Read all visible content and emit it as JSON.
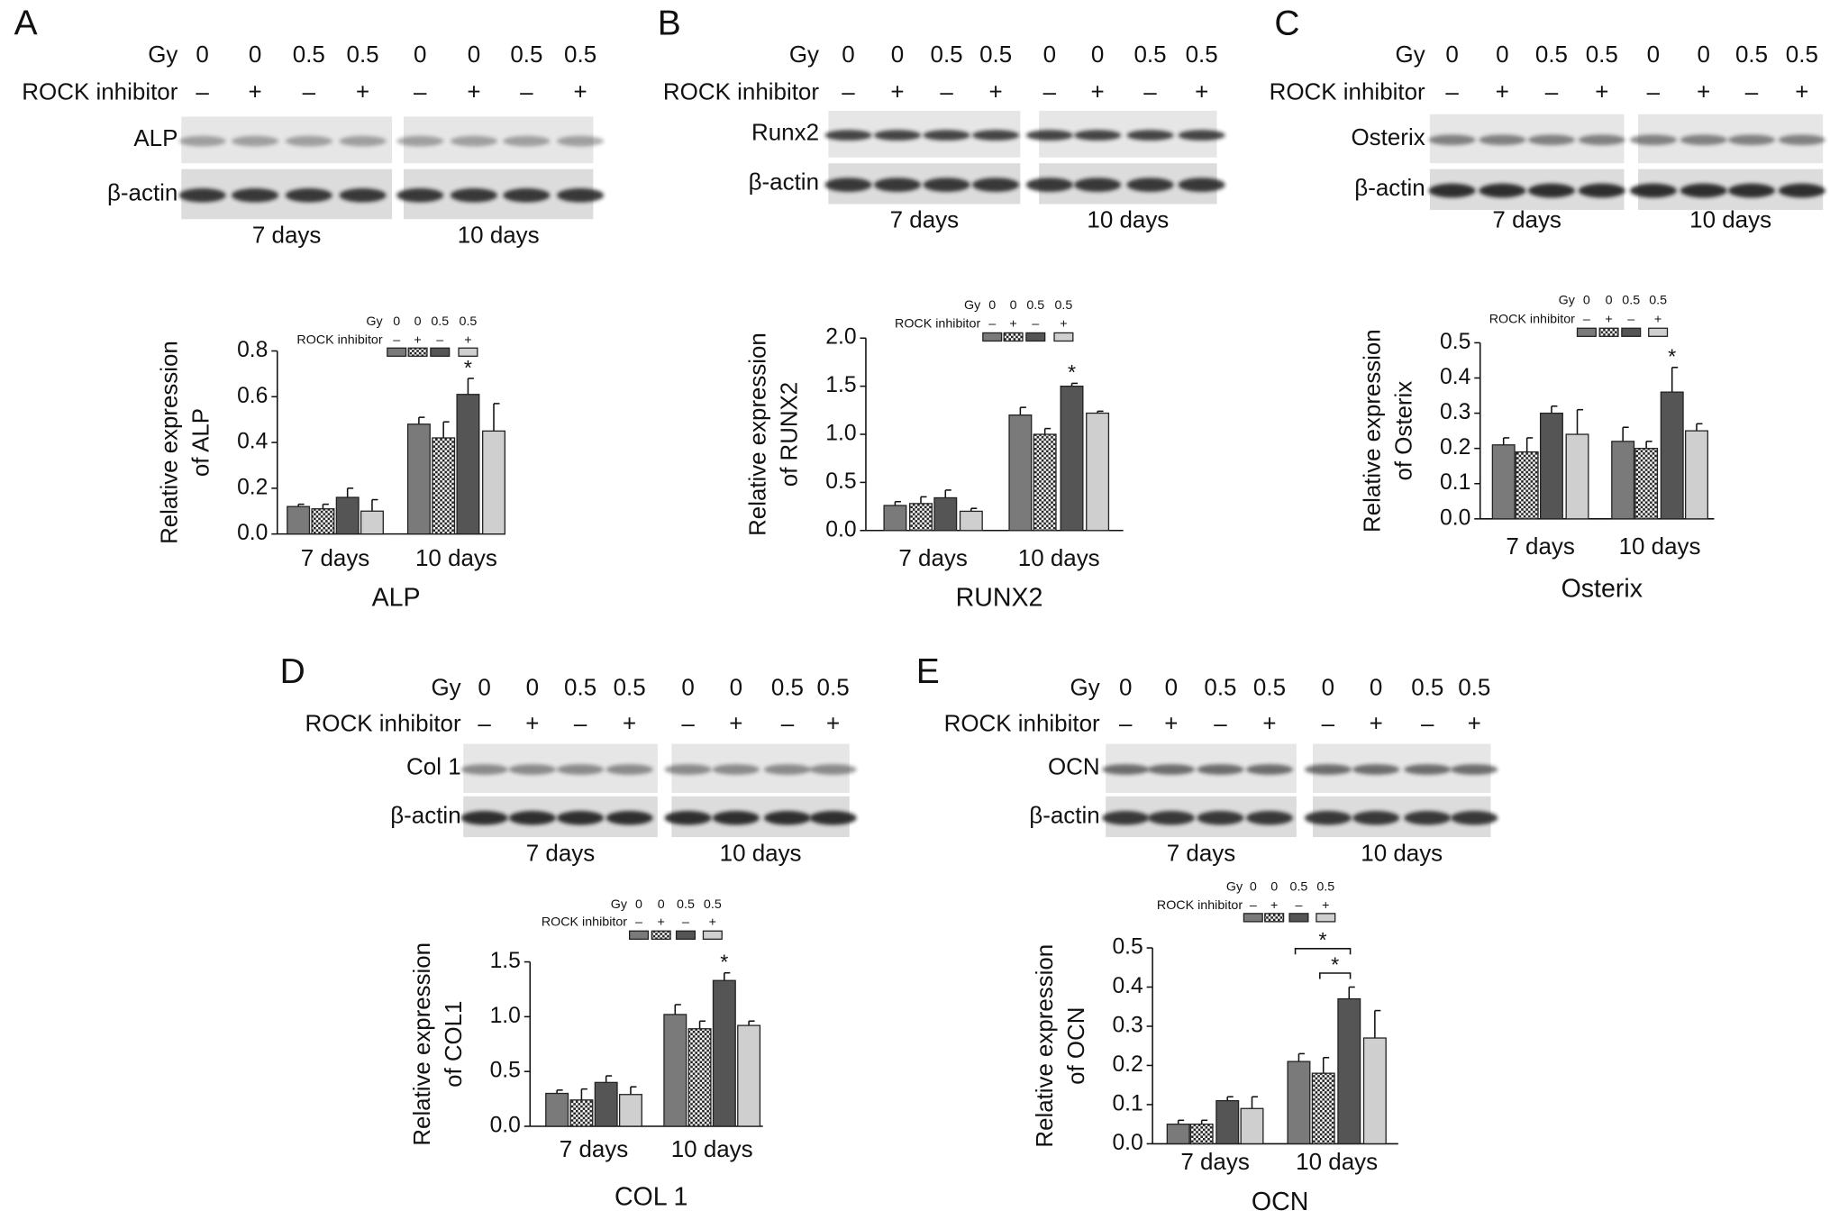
{
  "conditions": {
    "gy_label": "Gy",
    "gy": [
      0,
      0,
      0.5,
      0.5
    ],
    "rock_label": "ROCK inhibitor",
    "rock": [
      "–",
      "+",
      "–",
      "+"
    ]
  },
  "chart_data": [
    {
      "type": "bar",
      "panel": "A",
      "blot": {
        "bands": [
          "ALP",
          "β-actin"
        ],
        "groups": [
          "7 days",
          "10 days"
        ]
      },
      "title": "ALP",
      "ylabel": [
        "Relative expression",
        "of ALP"
      ],
      "categories": [
        "7 days",
        "10 days"
      ],
      "series": [
        {
          "color": "#7a7a7a",
          "values": [
            0.12,
            0.48
          ],
          "errors": [
            0.01,
            0.03
          ]
        },
        {
          "color": "#333333",
          "pattern": "checker",
          "values": [
            0.11,
            0.42
          ],
          "errors": [
            0.02,
            0.07
          ]
        },
        {
          "color": "#555555",
          "values": [
            0.16,
            0.61
          ],
          "errors": [
            0.04,
            0.07
          ]
        },
        {
          "color": "#cfcfcf",
          "values": [
            0.1,
            0.45
          ],
          "errors": [
            0.05,
            0.12
          ]
        }
      ],
      "ylim": [
        0,
        0.8
      ],
      "yticks": [
        {
          "value": 0,
          "label": "0.0"
        },
        0.2,
        0.4,
        0.6,
        0.8
      ],
      "annotations": [
        {
          "text": "*",
          "category": 1,
          "series": 2
        }
      ]
    },
    {
      "type": "bar",
      "panel": "B",
      "blot": {
        "bands": [
          "Runx2",
          "β-actin"
        ],
        "groups": [
          "7 days",
          "10 days"
        ]
      },
      "title": "RUNX2",
      "ylabel": [
        "Relative expression",
        "of RUNX2"
      ],
      "categories": [
        "7 days",
        "10 days"
      ],
      "series": [
        {
          "color": "#7a7a7a",
          "values": [
            0.26,
            1.2
          ],
          "errors": [
            0.04,
            0.08
          ]
        },
        {
          "color": "#333333",
          "pattern": "checker",
          "values": [
            0.28,
            1.0
          ],
          "errors": [
            0.07,
            0.06
          ]
        },
        {
          "color": "#555555",
          "values": [
            0.34,
            1.5
          ],
          "errors": [
            0.08,
            0.03
          ]
        },
        {
          "color": "#cfcfcf",
          "values": [
            0.2,
            1.22
          ],
          "errors": [
            0.03,
            0.02
          ]
        }
      ],
      "ylim": [
        0,
        2
      ],
      "yticks": [
        {
          "value": 0,
          "label": "0.0"
        },
        0.5,
        {
          "value": 1,
          "label": "1.0"
        },
        1.5,
        {
          "value": 2,
          "label": "2.0"
        }
      ],
      "annotations": [
        {
          "text": "*",
          "category": 1,
          "series": 2
        }
      ]
    },
    {
      "type": "bar",
      "panel": "C",
      "blot": {
        "bands": [
          "Osterix",
          "β-actin"
        ],
        "groups": [
          "7 days",
          "10 days"
        ]
      },
      "title": "Osterix",
      "ylabel": [
        "Relative expression",
        "of Osterix"
      ],
      "categories": [
        "7 days",
        "10 days"
      ],
      "series": [
        {
          "color": "#7a7a7a",
          "values": [
            0.21,
            0.22
          ],
          "errors": [
            0.02,
            0.04
          ]
        },
        {
          "color": "#333333",
          "pattern": "checker",
          "values": [
            0.19,
            0.2
          ],
          "errors": [
            0.04,
            0.02
          ]
        },
        {
          "color": "#555555",
          "values": [
            0.3,
            0.36
          ],
          "errors": [
            0.02,
            0.07
          ]
        },
        {
          "color": "#cfcfcf",
          "values": [
            0.24,
            0.25
          ],
          "errors": [
            0.07,
            0.02
          ]
        }
      ],
      "ylim": [
        0,
        0.5
      ],
      "yticks": [
        {
          "value": 0,
          "label": "0.0"
        },
        0.1,
        0.2,
        0.3,
        0.4,
        0.5
      ],
      "annotations": [
        {
          "text": "*",
          "category": 1,
          "series": 2
        }
      ]
    },
    {
      "type": "bar",
      "panel": "D",
      "blot": {
        "bands": [
          "Col 1",
          "β-actin"
        ],
        "groups": [
          "7 days",
          "10 days"
        ]
      },
      "title": "COL 1",
      "ylabel": [
        "Relative expression",
        "of COL1"
      ],
      "categories": [
        "7 days",
        "10 days"
      ],
      "series": [
        {
          "color": "#7a7a7a",
          "values": [
            0.3,
            1.02
          ],
          "errors": [
            0.03,
            0.09
          ]
        },
        {
          "color": "#333333",
          "pattern": "checker",
          "values": [
            0.24,
            0.89
          ],
          "errors": [
            0.1,
            0.07
          ]
        },
        {
          "color": "#555555",
          "values": [
            0.4,
            1.33
          ],
          "errors": [
            0.06,
            0.07
          ]
        },
        {
          "color": "#cfcfcf",
          "values": [
            0.29,
            0.92
          ],
          "errors": [
            0.07,
            0.04
          ]
        }
      ],
      "ylim": [
        0,
        1.5
      ],
      "yticks": [
        {
          "value": 0,
          "label": "0.0"
        },
        0.5,
        {
          "value": 1,
          "label": "1.0"
        },
        1.5
      ],
      "annotations": [
        {
          "text": "*",
          "category": 1,
          "series": 2
        }
      ]
    },
    {
      "type": "bar",
      "panel": "E",
      "blot": {
        "bands": [
          "OCN",
          "β-actin"
        ],
        "groups": [
          "7 days",
          "10 days"
        ]
      },
      "title": "OCN",
      "ylabel": [
        "Relative expression",
        "of OCN"
      ],
      "categories": [
        "7 days",
        "10 days"
      ],
      "series": [
        {
          "color": "#7a7a7a",
          "values": [
            0.05,
            0.21
          ],
          "errors": [
            0.01,
            0.02
          ]
        },
        {
          "color": "#333333",
          "pattern": "checker",
          "values": [
            0.05,
            0.18
          ],
          "errors": [
            0.01,
            0.04
          ]
        },
        {
          "color": "#555555",
          "values": [
            0.11,
            0.37
          ],
          "errors": [
            0.01,
            0.03
          ]
        },
        {
          "color": "#cfcfcf",
          "values": [
            0.09,
            0.27
          ],
          "errors": [
            0.03,
            0.07
          ]
        }
      ],
      "ylim": [
        0,
        0.5
      ],
      "yticks": [
        {
          "value": 0,
          "label": "0.0"
        },
        0.1,
        0.2,
        0.3,
        0.4,
        0.5
      ],
      "annotations": [
        {
          "text": "*",
          "category": 1,
          "from": 0,
          "to": 2
        },
        {
          "text": "*",
          "category": 1,
          "from": 1,
          "to": 2
        }
      ]
    }
  ]
}
